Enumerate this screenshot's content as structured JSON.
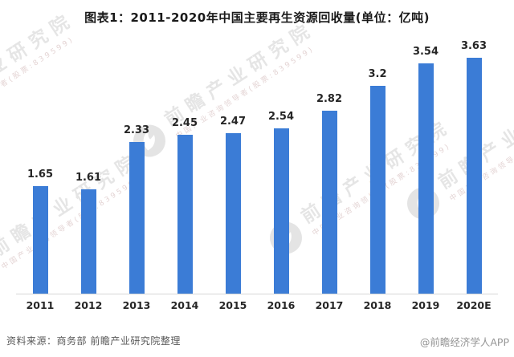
{
  "title": "图表1：2011-2020年中国主要再生资源回收量(单位：亿吨)",
  "chart_data": {
    "type": "bar",
    "title": "图表1：2011-2020年中国主要再生资源回收量(单位：亿吨)",
    "categories": [
      "2011",
      "2012",
      "2013",
      "2014",
      "2015",
      "2016",
      "2017",
      "2018",
      "2019",
      "2020E"
    ],
    "values": [
      1.65,
      1.61,
      2.33,
      2.45,
      2.47,
      2.54,
      2.82,
      3.2,
      3.54,
      3.63
    ],
    "value_labels": [
      "1.65",
      "1.61",
      "2.33",
      "2.45",
      "2.47",
      "2.54",
      "2.82",
      "3.2",
      "3.54",
      "3.63"
    ],
    "xlabel": "",
    "ylabel": "",
    "unit": "亿吨",
    "ylim": [
      0,
      3.9
    ],
    "grid": false,
    "legend": false,
    "colors": {
      "bar": "#3b7cd6",
      "axis_line": "#d6d6d6",
      "value_label": "#262626",
      "tick_label": "#262626"
    }
  },
  "footer": {
    "source": "资料来源：商务部 前瞻产业研究院整理",
    "credit": "@前瞻经济学人APP"
  },
  "watermark": {
    "icon": "qianzhan-bird-logo",
    "text": "前瞻产业研究院",
    "subtext": "中国产业咨询领导者(股票:839599)"
  }
}
